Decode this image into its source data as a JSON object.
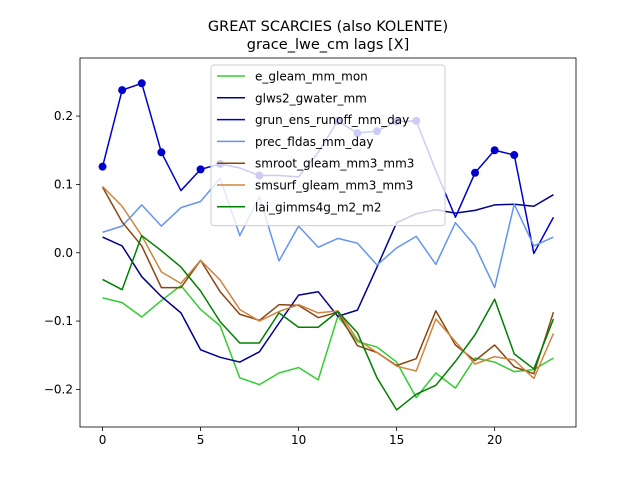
{
  "chart_data": {
    "type": "line",
    "title": "GREAT SCARCIES (also KOLENTE)",
    "subtitle": "grace_lwe_cm lags [X]",
    "xlabel": "",
    "ylabel": "",
    "xlim": [
      -1.15,
      24.15
    ],
    "ylim": [
      -0.255,
      0.285
    ],
    "xticks": [
      0,
      5,
      10,
      15,
      20
    ],
    "yticks": [
      -0.2,
      -0.1,
      0.0,
      0.1,
      0.2
    ],
    "ytick_labels": [
      "−0.2",
      "−0.1",
      "0.0",
      "0.1",
      "0.2"
    ],
    "grid": false,
    "legend_position": "upper-center",
    "x": [
      0,
      1,
      2,
      3,
      4,
      5,
      6,
      7,
      8,
      9,
      10,
      11,
      12,
      13,
      14,
      15,
      16,
      17,
      18,
      19,
      20,
      21,
      22,
      23
    ],
    "series": [
      {
        "name": "e_gleam_mm_mon",
        "color": "#32cd32",
        "values": [
          -0.066,
          -0.073,
          -0.094,
          -0.07,
          -0.048,
          -0.083,
          -0.107,
          -0.183,
          -0.193,
          -0.176,
          -0.168,
          -0.186,
          -0.093,
          -0.13,
          -0.138,
          -0.16,
          -0.212,
          -0.176,
          -0.198,
          -0.154,
          -0.16,
          -0.174,
          -0.171,
          -0.154
        ]
      },
      {
        "name": "glws2_gwater_mm",
        "color": "#00008b",
        "values": [
          0.023,
          0.01,
          -0.035,
          -0.064,
          -0.088,
          -0.142,
          -0.153,
          -0.16,
          -0.145,
          -0.103,
          -0.062,
          -0.057,
          -0.093,
          -0.084,
          -0.021,
          0.044,
          0.057,
          0.063,
          0.058,
          0.062,
          0.07,
          0.071,
          0.068,
          0.085
        ]
      },
      {
        "name": "grun_ens_runoff_mm_day",
        "color": "#0000cd",
        "values": [
          0.126,
          0.238,
          0.248,
          0.147,
          0.091,
          0.122,
          0.13,
          0.124,
          0.113,
          0.113,
          0.111,
          0.147,
          0.193,
          0.175,
          0.178,
          0.192,
          0.193,
          0.12,
          0.052,
          0.117,
          0.15,
          0.143,
          -0.001,
          0.052
        ],
        "markers": [
          0,
          1,
          2,
          3,
          5,
          6,
          8,
          12,
          13,
          14,
          15,
          16,
          19,
          20,
          21
        ]
      },
      {
        "name": "prec_fldas_mm_day",
        "color": "#6495ed",
        "values": [
          0.03,
          0.039,
          0.07,
          0.039,
          0.066,
          0.075,
          0.109,
          0.025,
          0.082,
          -0.012,
          0.039,
          0.008,
          0.021,
          0.014,
          -0.018,
          0.007,
          0.024,
          -0.017,
          0.044,
          0.01,
          -0.051,
          0.071,
          0.01,
          0.023
        ]
      },
      {
        "name": "smroot_gleam_mm3_mm3",
        "color": "#8b4513",
        "values": [
          0.096,
          0.045,
          0.01,
          -0.051,
          -0.051,
          -0.011,
          -0.057,
          -0.09,
          -0.099,
          -0.076,
          -0.077,
          -0.095,
          -0.087,
          -0.136,
          -0.146,
          -0.165,
          -0.155,
          -0.085,
          -0.135,
          -0.158,
          -0.135,
          -0.167,
          -0.177,
          -0.087
        ]
      },
      {
        "name": "smsurf_gleam_mm3_mm3",
        "color": "#cd853f",
        "values": [
          0.097,
          0.068,
          0.025,
          -0.028,
          -0.045,
          -0.011,
          -0.04,
          -0.083,
          -0.1,
          -0.086,
          -0.076,
          -0.088,
          -0.085,
          -0.127,
          -0.146,
          -0.166,
          -0.173,
          -0.097,
          -0.13,
          -0.163,
          -0.152,
          -0.157,
          -0.184,
          -0.118
        ]
      },
      {
        "name": "lai_gimms4g_m2_m2",
        "color": "#008000",
        "values": [
          -0.039,
          -0.054,
          0.025,
          0.003,
          -0.021,
          -0.056,
          -0.101,
          -0.132,
          -0.132,
          -0.088,
          -0.109,
          -0.109,
          -0.086,
          -0.117,
          -0.183,
          -0.23,
          -0.207,
          -0.194,
          -0.159,
          -0.12,
          -0.068,
          -0.148,
          -0.17,
          -0.097
        ]
      }
    ]
  }
}
